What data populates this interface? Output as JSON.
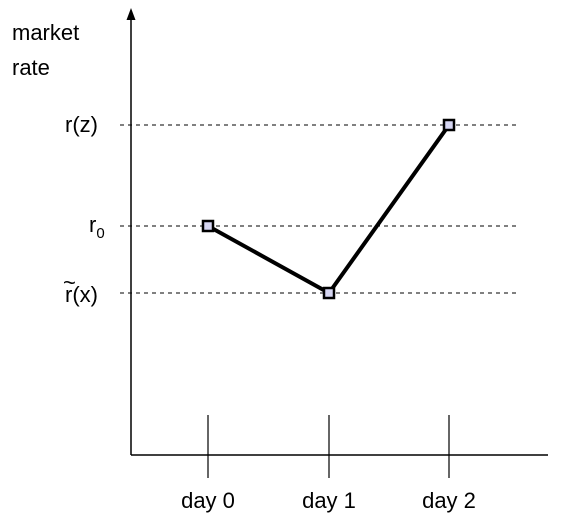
{
  "chart_data": {
    "type": "line",
    "ylabel_lines": [
      "market",
      "rate"
    ],
    "categories": [
      "day 0",
      "day 1",
      "day 2"
    ],
    "reference_lines": [
      {
        "key": "r_z",
        "label": "r(z)",
        "level": "r(z)"
      },
      {
        "key": "r_0",
        "label_base": "r",
        "label_sub": "0",
        "level": "r0"
      },
      {
        "key": "r_tilde_x",
        "label_tilde": "~",
        "label": "r(x)",
        "level": "r̃(x)"
      }
    ],
    "series": [
      {
        "points": [
          {
            "x": "day 0",
            "level": "r0"
          },
          {
            "x": "day 1",
            "level": "r̃(x)"
          },
          {
            "x": "day 2",
            "level": "r(z)"
          }
        ]
      }
    ],
    "grid": false,
    "legend": "none",
    "colors": {
      "line": "#000000",
      "marker_fill": "#d6d6f2",
      "marker_stroke": "#000000"
    }
  }
}
